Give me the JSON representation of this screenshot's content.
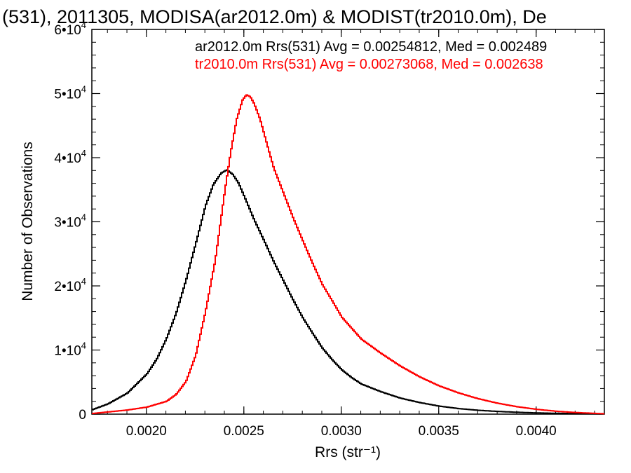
{
  "chart_data": {
    "type": "line",
    "title": "(531), 2011305, MODISA(ar2012.0m) & MODIST(tr2010.0m), De",
    "xlabel": "Rrs (str⁻¹)",
    "ylabel": "Number of Observations",
    "xlim": [
      0.00172,
      0.00435
    ],
    "ylim": [
      0,
      60000
    ],
    "x_ticks": [
      0.002,
      0.0025,
      0.003,
      0.0035,
      0.004
    ],
    "x_tick_labels": [
      "0.0020",
      "0.0025",
      "0.0030",
      "0.0035",
      "0.0040"
    ],
    "y_ticks": [
      0,
      10000,
      20000,
      30000,
      40000,
      50000,
      60000
    ],
    "y_tick_labels": [
      {
        "mantissa": "0",
        "exp": ""
      },
      {
        "mantissa": "1•10",
        "exp": "4"
      },
      {
        "mantissa": "2•10",
        "exp": "4"
      },
      {
        "mantissa": "3•10",
        "exp": "4"
      },
      {
        "mantissa": "4•10",
        "exp": "4"
      },
      {
        "mantissa": "5•10",
        "exp": "4"
      },
      {
        "mantissa": "6•10",
        "exp": "4"
      }
    ],
    "annotations": [
      {
        "text": "ar2012.0m Rrs(531) Avg = 0.00254812, Med = 0.002489",
        "color": "#000000"
      },
      {
        "text": "tr2010.0m Rrs(531) Avg = 0.00273068, Med = 0.002638",
        "color": "#ff0000"
      }
    ],
    "series": [
      {
        "color": "#000000",
        "x": [
          0.00172,
          0.0018,
          0.0019,
          0.002,
          0.00205,
          0.0021,
          0.00215,
          0.0022,
          0.00225,
          0.0023,
          0.00234,
          0.00238,
          0.00241,
          0.00244,
          0.00247,
          0.0025,
          0.00255,
          0.0026,
          0.00265,
          0.0027,
          0.00275,
          0.0028,
          0.00285,
          0.0029,
          0.00295,
          0.003,
          0.00305,
          0.0031,
          0.0032,
          0.0033,
          0.0034,
          0.0035,
          0.0036,
          0.0037,
          0.0038,
          0.0039,
          0.004,
          0.0041,
          0.0042,
          0.00435
        ],
        "y": [
          700,
          1600,
          3300,
          6300,
          8600,
          11800,
          15800,
          20900,
          26600,
          32500,
          35800,
          37600,
          38100,
          37400,
          36000,
          33900,
          30300,
          27100,
          23800,
          20800,
          17800,
          15000,
          12600,
          10300,
          8500,
          6900,
          5700,
          4700,
          3500,
          2500,
          1800,
          1250,
          860,
          600,
          420,
          290,
          190,
          130,
          85,
          40
        ]
      },
      {
        "color": "#ff0000",
        "x": [
          0.00172,
          0.0019,
          0.002,
          0.0021,
          0.00215,
          0.0022,
          0.00225,
          0.0023,
          0.00235,
          0.0024,
          0.00243,
          0.00246,
          0.00249,
          0.00251,
          0.00253,
          0.00255,
          0.00258,
          0.00261,
          0.00265,
          0.0027,
          0.00275,
          0.0028,
          0.00285,
          0.0029,
          0.00295,
          0.003,
          0.0031,
          0.0032,
          0.0033,
          0.0034,
          0.0035,
          0.0036,
          0.0037,
          0.0038,
          0.0039,
          0.004,
          0.0041,
          0.0042,
          0.00435
        ],
        "y": [
          100,
          650,
          1100,
          2000,
          3100,
          5100,
          9200,
          16000,
          24000,
          35000,
          41000,
          46000,
          49000,
          49800,
          49500,
          48400,
          46000,
          42700,
          38400,
          34500,
          30600,
          27000,
          23500,
          20200,
          17700,
          15100,
          11700,
          9500,
          7500,
          5800,
          4400,
          3300,
          2400,
          1700,
          1150,
          750,
          450,
          250,
          50
        ]
      }
    ]
  }
}
